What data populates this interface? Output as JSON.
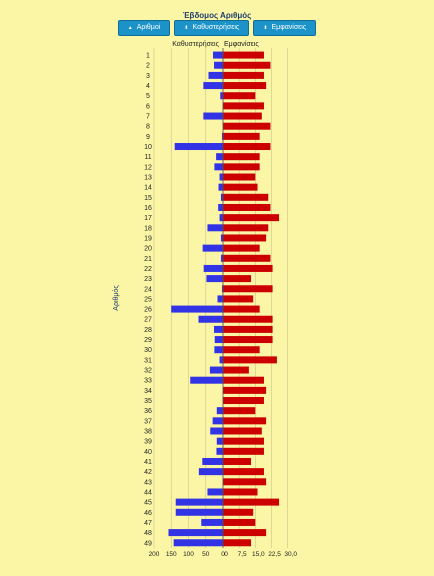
{
  "title": "Έβδομος Αριθμός",
  "sort_buttons": [
    {
      "label": "Αριθμοί",
      "arrow": "▲"
    },
    {
      "label": "Καθυστερήσεις",
      "arrow": "⬍"
    },
    {
      "label": "Εμφανίσεις",
      "arrow": "⬍"
    }
  ],
  "colors": {
    "background": "#fbf6a6",
    "delays": "#3333e6",
    "appearances": "#cc0000",
    "button": "#1b93c8"
  },
  "chart_data": {
    "type": "bar",
    "ylabel": "Αριθμός",
    "left_panel": {
      "name": "Καθυστερήσεις",
      "xlim": [
        0,
        200
      ],
      "ticks": [
        "200",
        "150",
        "100",
        "50",
        "0"
      ],
      "tick_values": [
        200,
        150,
        100,
        50,
        0
      ]
    },
    "right_panel": {
      "name": "Εμφανίσεις",
      "xlim": [
        0,
        32
      ],
      "ticks": [
        "0",
        "7,5",
        "15,0",
        "22,5",
        "30,0"
      ],
      "tick_values": [
        0,
        7.5,
        15,
        22.5,
        30
      ]
    },
    "categories": [
      "1",
      "2",
      "3",
      "4",
      "5",
      "6",
      "7",
      "8",
      "9",
      "10",
      "11",
      "12",
      "13",
      "14",
      "15",
      "16",
      "17",
      "18",
      "19",
      "20",
      "21",
      "22",
      "23",
      "24",
      "25",
      "26",
      "27",
      "28",
      "29",
      "30",
      "31",
      "32",
      "33",
      "34",
      "35",
      "36",
      "37",
      "38",
      "39",
      "40",
      "41",
      "42",
      "43",
      "44",
      "45",
      "46",
      "47",
      "48",
      "49"
    ],
    "series": [
      {
        "name": "Καθυστερήσεις",
        "values": [
          29,
          26,
          42,
          57,
          8,
          0,
          57,
          0,
          3,
          140,
          20,
          25,
          10,
          13,
          6,
          14,
          10,
          45,
          6,
          59,
          6,
          56,
          48,
          3,
          16,
          150,
          71,
          26,
          24,
          25,
          10,
          38,
          95,
          0,
          0,
          18,
          30,
          37,
          18,
          19,
          60,
          70,
          0,
          45,
          137,
          137,
          63,
          158,
          143
        ]
      },
      {
        "name": "Εμφανίσεις",
        "values": [
          19,
          22,
          19,
          20,
          15,
          19,
          18,
          22,
          17,
          22,
          17,
          17,
          15,
          16,
          21,
          22,
          26,
          21,
          20,
          17,
          22,
          23,
          13,
          23,
          14,
          17,
          23,
          23,
          23,
          17,
          25,
          12,
          19,
          20,
          19,
          15,
          20,
          18,
          19,
          19,
          13,
          19,
          20,
          16,
          26,
          14,
          15,
          20,
          13
        ]
      }
    ]
  }
}
